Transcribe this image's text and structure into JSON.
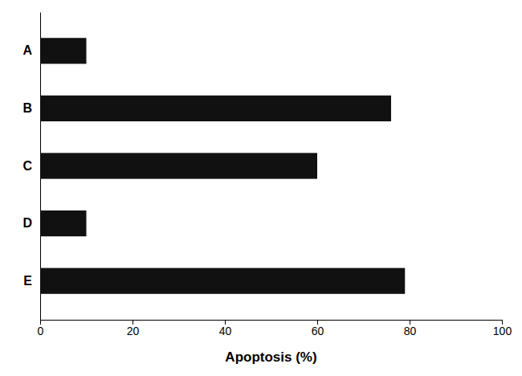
{
  "chart_data": {
    "type": "bar",
    "orientation": "horizontal",
    "categories": [
      "A",
      "B",
      "C",
      "D",
      "E"
    ],
    "values": [
      10,
      76,
      60,
      10,
      79
    ],
    "color": "#111111",
    "xlabel": "Apoptosis (%)",
    "xlim": [
      0,
      100
    ],
    "xticks": [
      0,
      20,
      40,
      60,
      80,
      100
    ]
  }
}
